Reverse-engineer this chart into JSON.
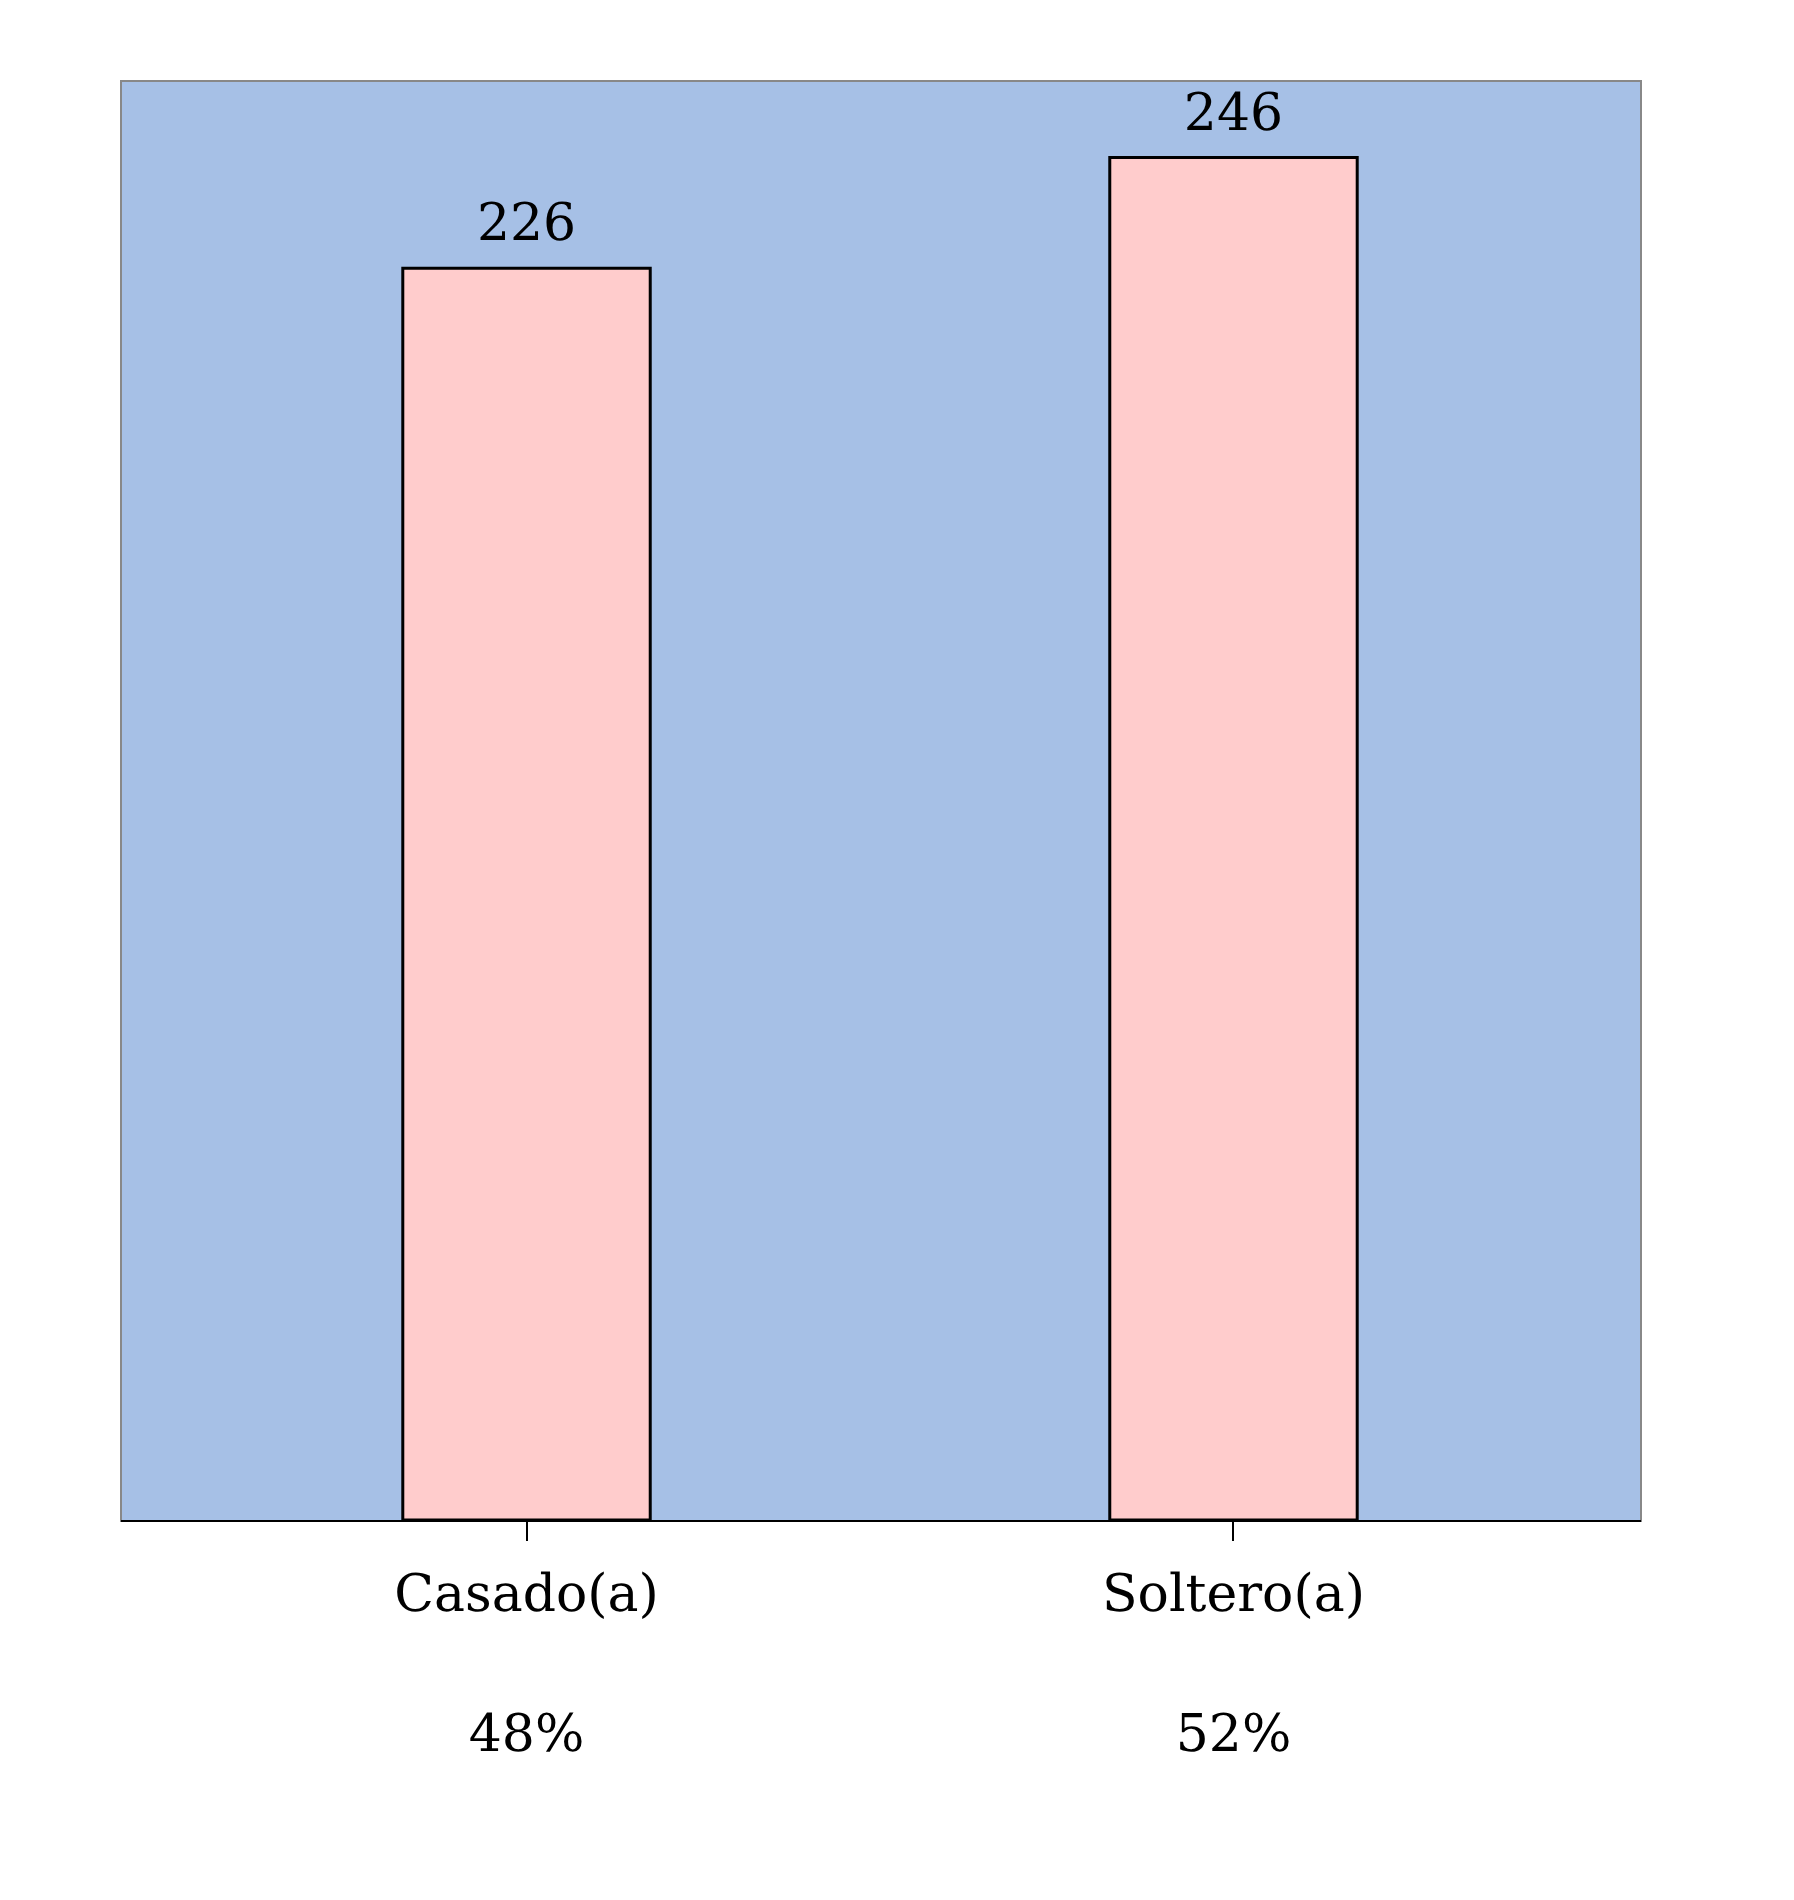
{
  "chart_data": {
    "type": "bar",
    "categories": [
      "Casado(a)\n48%",
      "Soltero(a)\n52%"
    ],
    "series": [
      {
        "color": "#ffcccc",
        "values": [
          226,
          246
        ]
      }
    ],
    "data_labels": true,
    "legend": false
  }
}
